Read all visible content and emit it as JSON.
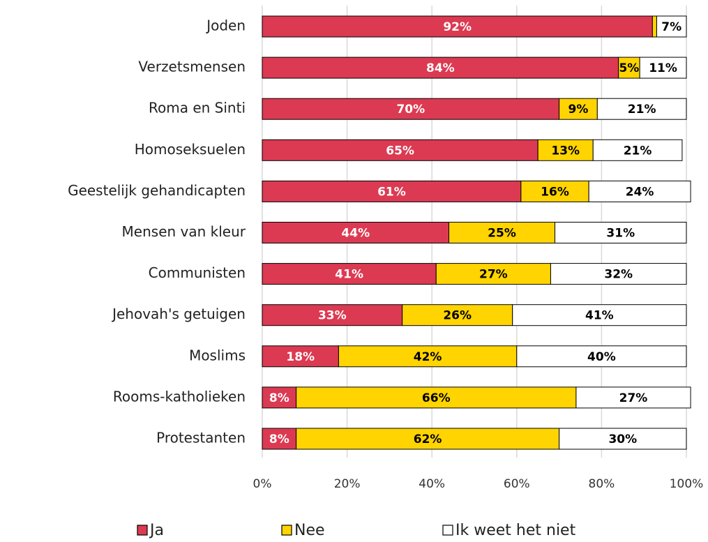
{
  "chart_data": {
    "type": "bar",
    "orientation": "horizontal",
    "stacked": true,
    "grid": true,
    "categories": [
      "Joden",
      "Verzetsmensen",
      "Roma en Sinti",
      "Homoseksuelen",
      "Geestelijk gehandicapten",
      "Mensen van kleur",
      "Communisten",
      "Jehovah's getuigen",
      "Moslims",
      "Rooms-katholieken",
      "Protestanten"
    ],
    "series": [
      {
        "name": "Ja",
        "color": "#dc3a52",
        "label_color": "#ffffff",
        "values": [
          92,
          84,
          70,
          65,
          61,
          44,
          41,
          33,
          18,
          8,
          8
        ],
        "value_labels": [
          "92%",
          "84%",
          "70%",
          "65%",
          "61%",
          "44%",
          "41%",
          "33%",
          "18%",
          "8%",
          "8%"
        ]
      },
      {
        "name": "Nee",
        "color": "#ffd400",
        "label_color": "#000000",
        "values": [
          1,
          5,
          9,
          13,
          16,
          25,
          27,
          26,
          42,
          66,
          62
        ],
        "value_labels": [
          null,
          "5%",
          "9%",
          "13%",
          "16%",
          "25%",
          "27%",
          "26%",
          "42%",
          "66%",
          "62%"
        ]
      },
      {
        "name": "Ik weet het niet",
        "color": "#ffffff",
        "label_color": "#000000",
        "values": [
          7,
          11,
          21,
          21,
          24,
          31,
          32,
          41,
          40,
          27,
          30
        ],
        "value_labels": [
          "7%",
          "11%",
          "21%",
          "21%",
          "24%",
          "31%",
          "32%",
          "41%",
          "40%",
          "27%",
          "30%"
        ]
      }
    ],
    "xlim": [
      0,
      100
    ],
    "xticks": [
      {
        "value": 0,
        "label": "0%"
      },
      {
        "value": 20,
        "label": "20%"
      },
      {
        "value": 40,
        "label": "40%"
      },
      {
        "value": 60,
        "label": "60%"
      },
      {
        "value": 80,
        "label": "80%"
      },
      {
        "value": 100,
        "label": "100%"
      }
    ]
  }
}
